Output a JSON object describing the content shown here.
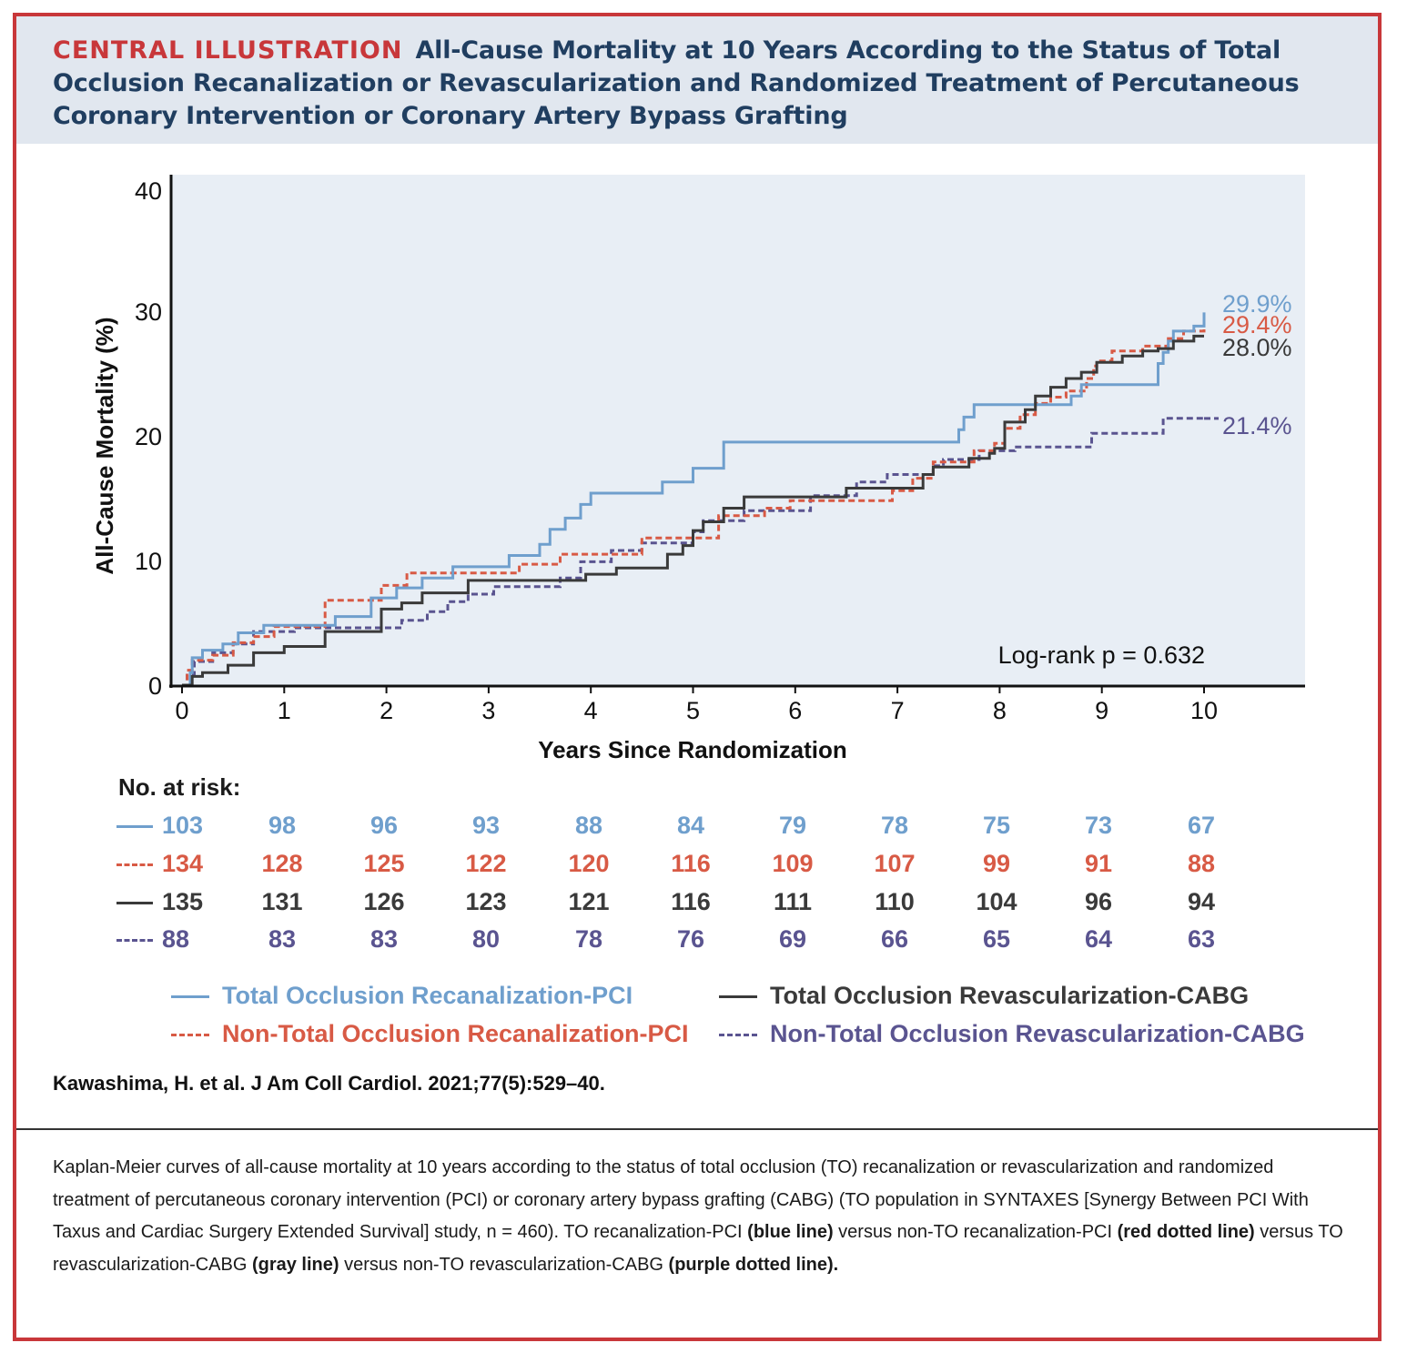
{
  "header": {
    "kicker": "CENTRAL ILLUSTRATION",
    "title": "All-Cause Mortality at 10 Years According to the Status of Total Occlusion Recanalization or Revascularization and Randomized Treatment of Percutaneous Coronary Intervention or Coronary Artery Bypass Grafting"
  },
  "colors": {
    "frame": "#c8373a",
    "header_bg": "#e1e7ef",
    "title": "#203e60",
    "plot_bg": "#e8eef5",
    "blue": "#6f9fcd",
    "red": "#d85a45",
    "gray": "#3a3a3a",
    "purple": "#5a5490"
  },
  "chart_data": {
    "type": "line",
    "title": "All-Cause Mortality at 10 Years",
    "xlabel": "Years Since Randomization",
    "ylabel": "All-Cause Mortality (%)",
    "xlim": [
      0,
      11
    ],
    "ylim": [
      0,
      40
    ],
    "xticks": [
      0,
      1,
      2,
      3,
      4,
      5,
      6,
      7,
      8,
      9,
      10
    ],
    "yticks": [
      0,
      10,
      20,
      30,
      40
    ],
    "annotation": "Log-rank p = 0.632",
    "series": [
      {
        "name": "Total Occlusion Recanalization-PCI",
        "color": "#6f9fcd",
        "style": "solid",
        "end_label": "29.9%",
        "x": [
          0,
          0.08,
          0.1,
          0.2,
          0.4,
          0.55,
          0.8,
          1.2,
          1.5,
          1.85,
          2.1,
          2.35,
          2.65,
          3.2,
          3.5,
          3.6,
          3.75,
          3.9,
          4.0,
          4.2,
          4.7,
          5.0,
          5.3,
          7.4,
          7.6,
          7.65,
          7.75,
          8.3,
          8.7,
          8.8,
          8.95,
          9.5,
          9.55,
          9.6,
          9.65,
          9.7,
          9.9,
          10.0
        ],
        "y": [
          0,
          1.0,
          2.2,
          2.8,
          3.3,
          4.2,
          4.8,
          4.8,
          5.5,
          7.0,
          7.8,
          8.6,
          9.5,
          10.4,
          11.3,
          12.5,
          13.4,
          14.5,
          15.4,
          15.4,
          16.3,
          17.4,
          19.5,
          19.5,
          20.5,
          21.5,
          22.5,
          22.5,
          23.2,
          24.1,
          24.1,
          24.1,
          25.8,
          26.7,
          27.6,
          28.4,
          28.8,
          29.9
        ]
      },
      {
        "name": "Non-Total Occlusion Recanalization-PCI",
        "color": "#d85a45",
        "style": "dashed",
        "end_label": "29.4%",
        "x": [
          0,
          0.05,
          0.1,
          0.3,
          0.5,
          0.7,
          0.9,
          1.4,
          1.8,
          1.95,
          2.2,
          3.0,
          3.3,
          3.7,
          4.0,
          4.5,
          5.0,
          5.25,
          5.55,
          5.7,
          5.95,
          6.1,
          6.6,
          6.95,
          7.15,
          7.35,
          7.75,
          7.95,
          8.05,
          8.2,
          8.35,
          8.5,
          8.65,
          8.85,
          8.92,
          8.95,
          9.1,
          9.4,
          9.65,
          9.8,
          10.0
        ],
        "y": [
          0,
          1.2,
          2.0,
          2.4,
          3.4,
          3.9,
          4.7,
          6.8,
          6.8,
          8.0,
          9.0,
          9.0,
          9.7,
          10.5,
          10.5,
          11.8,
          11.8,
          13.6,
          13.6,
          14.2,
          14.8,
          14.8,
          14.8,
          15.6,
          16.6,
          17.9,
          18.8,
          19.4,
          20.6,
          21.7,
          22.6,
          23.1,
          23.6,
          24.6,
          25.6,
          26.0,
          26.8,
          27.2,
          27.8,
          28.4,
          29.4
        ]
      },
      {
        "name": "Total Occlusion Revascularization-CABG",
        "color": "#3a3a3a",
        "style": "solid",
        "end_label": "28.0%",
        "x": [
          0,
          0.1,
          0.2,
          0.45,
          0.7,
          1.0,
          1.4,
          1.85,
          1.95,
          2.15,
          2.35,
          2.8,
          3.3,
          3.95,
          4.25,
          4.75,
          4.9,
          5.0,
          5.1,
          5.3,
          5.5,
          6.5,
          7.15,
          7.25,
          7.35,
          7.7,
          7.9,
          7.95,
          8.05,
          8.25,
          8.35,
          8.5,
          8.65,
          8.8,
          8.95,
          9.2,
          9.4,
          9.55,
          9.7,
          9.9,
          10.0
        ],
        "y": [
          0,
          0.7,
          1.0,
          1.6,
          2.6,
          3.1,
          4.3,
          4.3,
          6.1,
          6.6,
          7.4,
          8.4,
          8.4,
          8.9,
          9.4,
          10.5,
          11.2,
          12.4,
          13.1,
          14.2,
          15.1,
          15.8,
          15.8,
          16.9,
          17.5,
          18.2,
          18.6,
          19.0,
          21.1,
          22.1,
          23.2,
          23.9,
          24.6,
          25.1,
          25.9,
          26.4,
          26.8,
          27.0,
          27.6,
          28.0,
          28.0
        ]
      },
      {
        "name": "Non-Total Occlusion Revascularization-CABG",
        "color": "#5a5490",
        "style": "dashed",
        "end_label": "21.4%",
        "x": [
          0,
          0.05,
          0.12,
          0.3,
          0.5,
          0.7,
          1.1,
          1.5,
          2.05,
          2.15,
          2.4,
          2.6,
          2.8,
          3.05,
          3.7,
          3.9,
          4.2,
          4.5,
          5.0,
          5.1,
          5.5,
          6.15,
          6.6,
          6.9,
          7.35,
          7.45,
          7.8,
          8.05,
          8.15,
          8.8,
          8.9,
          9.5,
          9.6,
          10.0
        ],
        "y": [
          0,
          0.8,
          1.9,
          2.6,
          3.3,
          4.3,
          4.6,
          4.6,
          4.6,
          5.2,
          5.9,
          6.7,
          7.3,
          7.9,
          8.6,
          9.9,
          10.8,
          11.4,
          12.3,
          13.2,
          14.0,
          15.2,
          16.3,
          16.9,
          17.6,
          18.1,
          18.8,
          18.8,
          19.1,
          19.1,
          20.2,
          20.2,
          21.4,
          21.4
        ]
      }
    ]
  },
  "risk_table": {
    "heading": "No. at risk:",
    "rows": [
      {
        "color": "#6f9fcd",
        "style": "solid",
        "values": [
          "103",
          "98",
          "96",
          "93",
          "88",
          "84",
          "79",
          "78",
          "75",
          "73",
          "67"
        ]
      },
      {
        "color": "#d85a45",
        "style": "dashed",
        "values": [
          "134",
          "128",
          "125",
          "122",
          "120",
          "116",
          "109",
          "107",
          "99",
          "91",
          "88"
        ]
      },
      {
        "color": "#3a3a3a",
        "style": "solid",
        "values": [
          "135",
          "131",
          "126",
          "123",
          "121",
          "116",
          "111",
          "110",
          "104",
          "96",
          "94"
        ]
      },
      {
        "color": "#5a5490",
        "style": "dashed",
        "values": [
          "88",
          "83",
          "83",
          "80",
          "78",
          "76",
          "69",
          "66",
          "65",
          "64",
          "63"
        ]
      }
    ]
  },
  "legend": [
    {
      "label": "Total Occlusion Recanalization-PCI",
      "color": "#6f9fcd",
      "style": "solid"
    },
    {
      "label": "Total Occlusion Revascularization-CABG",
      "color": "#3a3a3a",
      "style": "solid"
    },
    {
      "label": "Non-Total Occlusion Recanalization-PCI",
      "color": "#d85a45",
      "style": "dashed"
    },
    {
      "label": "Non-Total Occlusion Revascularization-CABG",
      "color": "#5a5490",
      "style": "dashed"
    }
  ],
  "citation": "Kawashima, H. et al. J Am Coll Cardiol. 2021;77(5):529–40.",
  "caption": {
    "part1": "Kaplan-Meier curves of all-cause mortality at 10 years according to the status of total occlusion (TO) recanalization or revascularization and randomized treatment of percutaneous coronary intervention (PCI) or coronary artery bypass grafting (CABG) (TO population in SYNTAXES [Synergy Between PCI With Taxus and Cardiac Surgery Extended Survival] study, n = 460). TO recanalization-PCI ",
    "b1": "(blue line)",
    "part2": " versus non-TO recanalization-PCI ",
    "b2": "(red dotted line)",
    "part3": " versus TO revascularization-CABG ",
    "b3": "(gray line)",
    "part4": " versus non-TO revascularization-CABG ",
    "b4": "(purple dotted line)."
  }
}
